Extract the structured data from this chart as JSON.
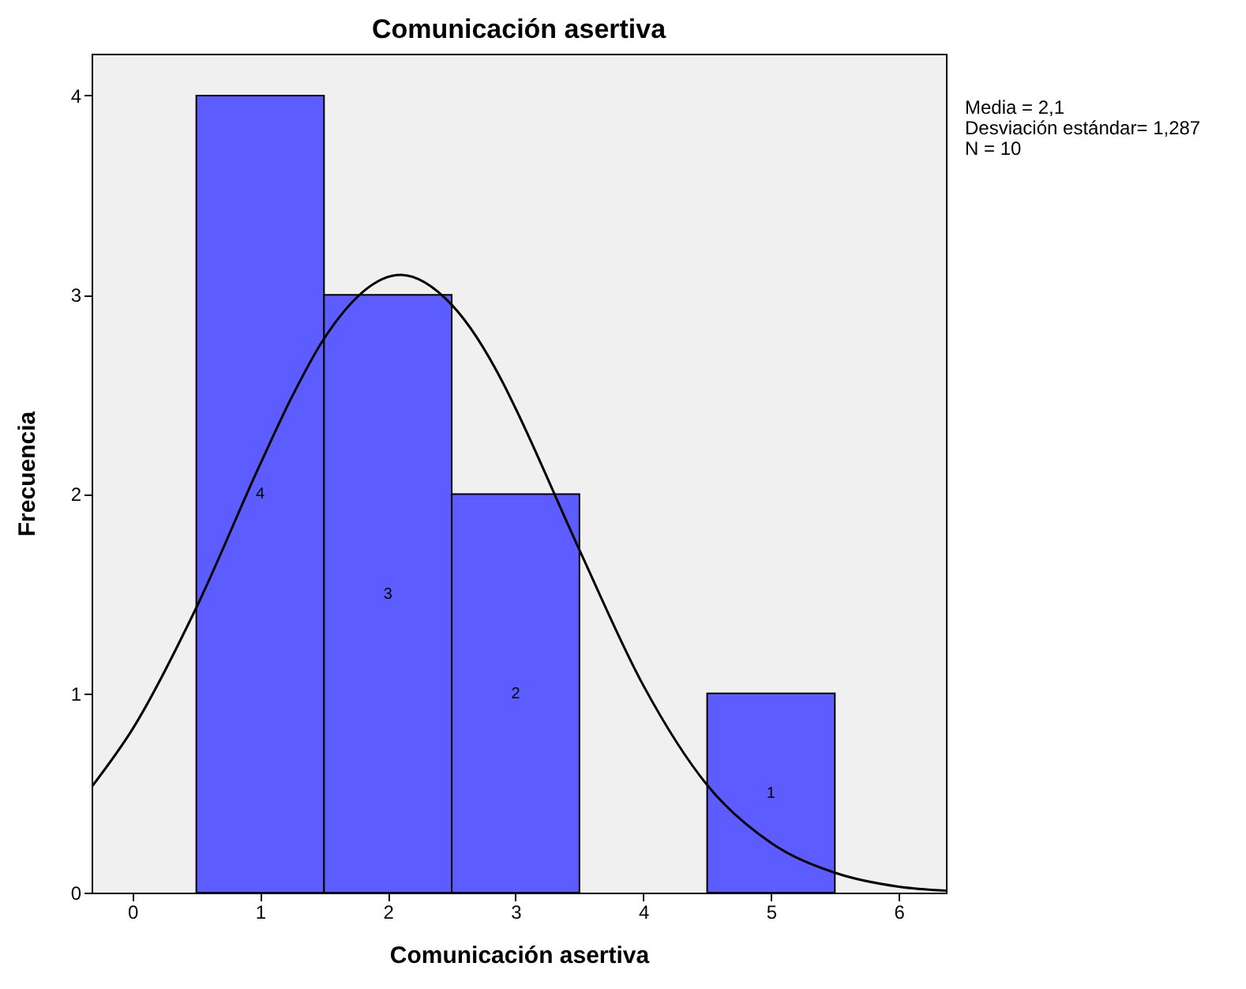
{
  "chart_data": {
    "type": "histogram",
    "title": "Comunicación asertiva",
    "xlabel": "Comunicación asertiva",
    "ylabel": "Frecuencia",
    "bins": [
      0.5,
      1.5,
      2.5,
      3.5,
      4.5,
      5.5
    ],
    "values": [
      4,
      3,
      2,
      0,
      1
    ],
    "value_labels": [
      "4",
      "3",
      "2",
      null,
      "1"
    ],
    "color": "#5c5cff",
    "series": [
      {
        "type": "line",
        "color": "#000000",
        "x": [
          -0.32,
          0,
          0.5,
          1,
          1.25,
          1.5,
          2.1,
          2.5,
          2.9,
          3,
          3.5,
          4,
          4.5,
          5,
          5.5,
          6,
          6.37
        ],
        "values": [
          0.53,
          0.82,
          1.43,
          2.15,
          2.49,
          2.78,
          3.1,
          2.95,
          2.56,
          2.43,
          1.72,
          1.04,
          0.54,
          0.25,
          0.1,
          0.03,
          0.01
        ]
      }
    ],
    "xlim": [
      -0.32,
      6.37
    ],
    "xticks": [
      0,
      1,
      2,
      3,
      4,
      5,
      6
    ],
    "ylim": [
      0,
      4.21
    ],
    "yticks": [
      0,
      1,
      2,
      3,
      4
    ],
    "grid": false,
    "annotations": [
      "Media = 2,1",
      "Desviación estándar= 1,287",
      "N = 10"
    ]
  }
}
